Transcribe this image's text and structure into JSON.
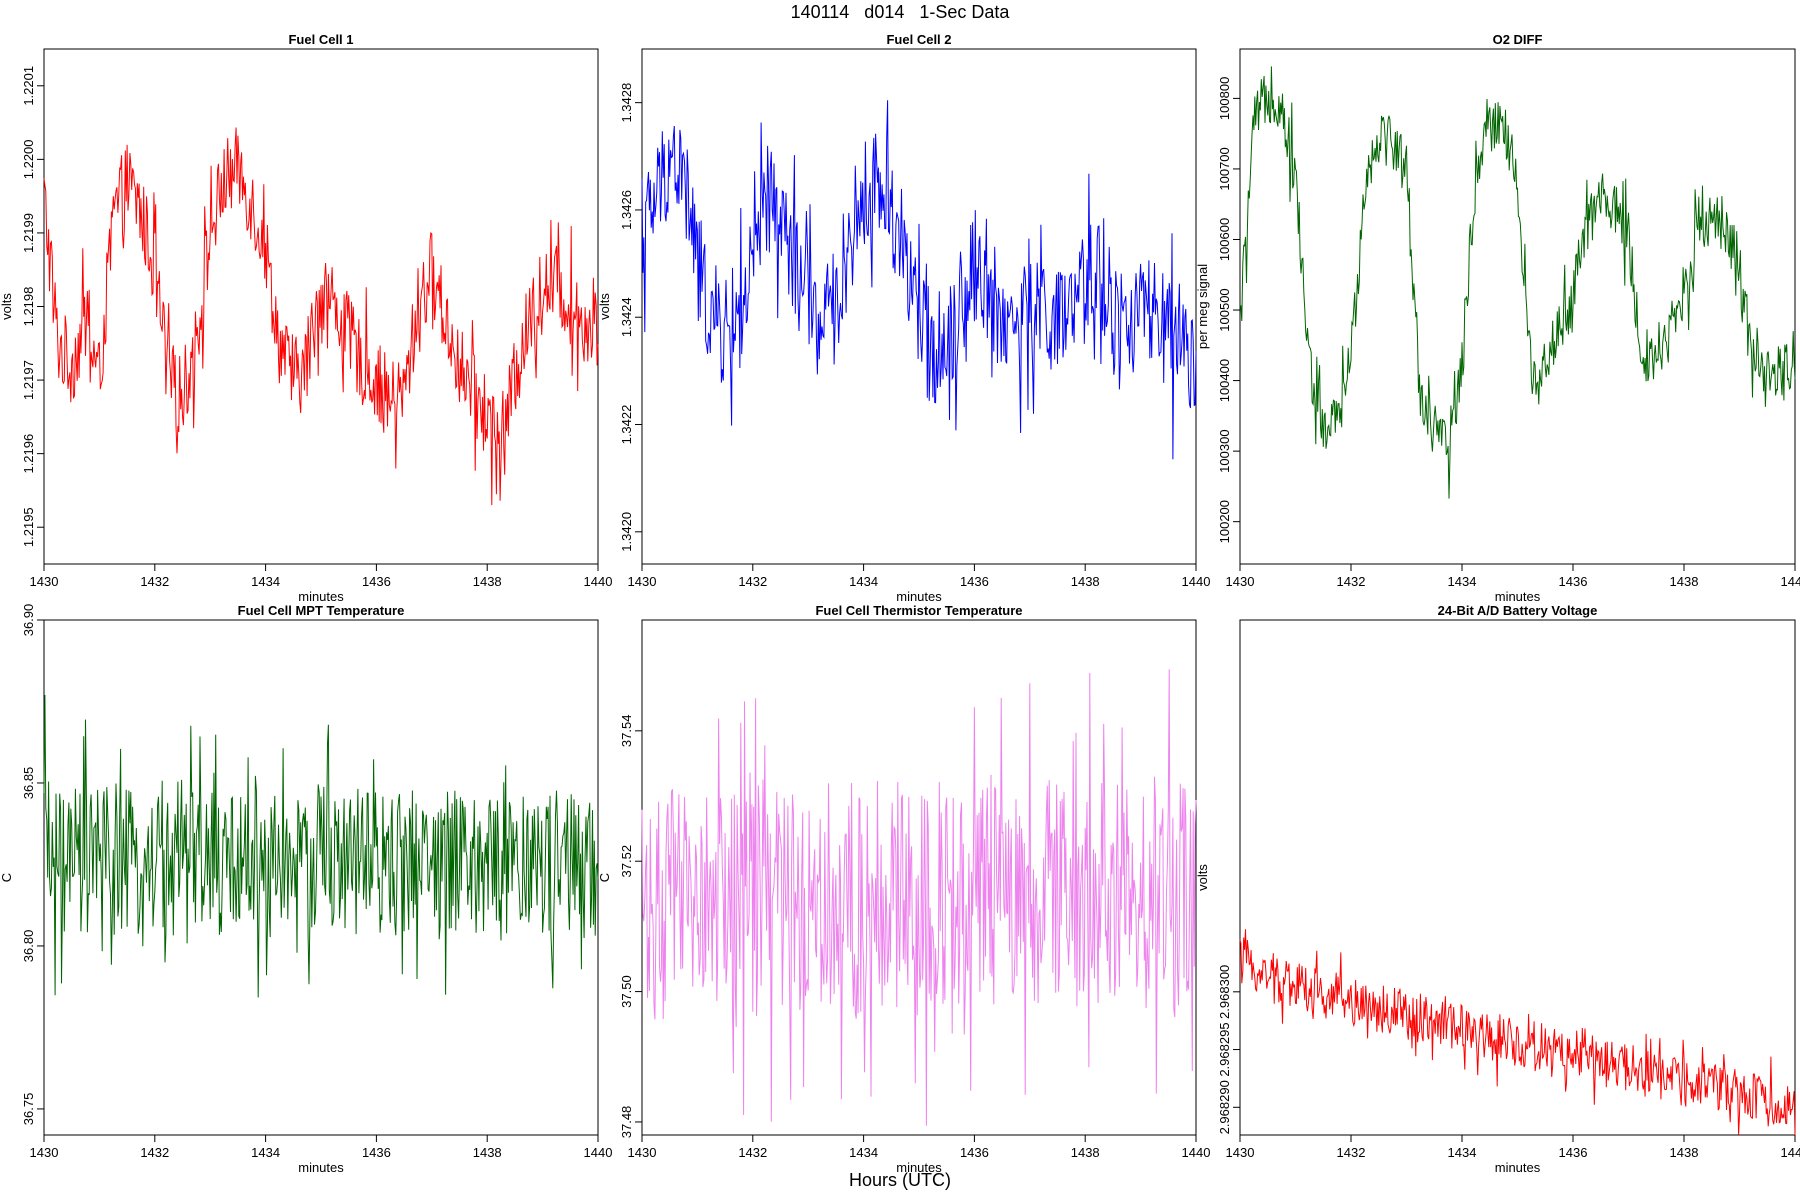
{
  "title": "140114   d014   1-Sec Data",
  "bottom_label": "Hours (UTC)",
  "chart_data": [
    {
      "type": "line",
      "title": "Fuel Cell 1",
      "xlabel": "minutes",
      "ylabel": "volts",
      "color": "#ff0000",
      "xlim": [
        1430,
        1440
      ],
      "ylim": [
        1.21945,
        1.22015
      ],
      "xticks": [
        "1430",
        "1432",
        "1434",
        "1436",
        "1438",
        "1440"
      ],
      "yticks": [
        "1.2195",
        "1.2196",
        "1.2197",
        "1.2198",
        "1.2199",
        "1.2200",
        "1.2201"
      ],
      "series": [
        {
          "x": [
            1430.0,
            1430.25,
            1430.5,
            1430.75,
            1431.0,
            1431.25,
            1431.5,
            1431.75,
            1432.0,
            1432.25,
            1432.5,
            1432.75,
            1433.0,
            1433.25,
            1433.5,
            1433.75,
            1434.0,
            1434.25,
            1434.5,
            1434.75,
            1435.0,
            1435.25,
            1435.5,
            1435.75,
            1436.0,
            1436.25,
            1436.5,
            1436.75,
            1437.0,
            1437.25,
            1437.5,
            1437.75,
            1438.0,
            1438.25,
            1438.5,
            1438.75,
            1439.0,
            1439.25,
            1439.5,
            1439.75,
            1440.0
          ],
          "y": [
            1.21995,
            1.21975,
            1.21972,
            1.21978,
            1.2197,
            1.21992,
            1.21997,
            1.21993,
            1.21985,
            1.2197,
            1.21968,
            1.21975,
            1.2199,
            1.21997,
            1.21999,
            1.21994,
            1.21988,
            1.21975,
            1.2197,
            1.21972,
            1.21983,
            1.2198,
            1.21976,
            1.21972,
            1.2197,
            1.21967,
            1.21968,
            1.2198,
            1.21985,
            1.21978,
            1.21972,
            1.21968,
            1.21965,
            1.21962,
            1.2197,
            1.21978,
            1.21982,
            1.21983,
            1.2198,
            1.21978,
            1.21977
          ]
        }
      ]
    },
    {
      "type": "line",
      "title": "Fuel Cell 2",
      "xlabel": "minutes",
      "ylabel": "volts",
      "color": "#0000ff",
      "xlim": [
        1430,
        1440
      ],
      "ylim": [
        1.34194,
        1.3429
      ],
      "xticks": [
        "1430",
        "1432",
        "1434",
        "1436",
        "1438",
        "1440"
      ],
      "yticks": [
        "1.3420",
        "1.3422",
        "1.3424",
        "1.3426",
        "1.3428"
      ],
      "series": [
        {
          "x": [
            1430.0,
            1430.25,
            1430.5,
            1430.75,
            1431.0,
            1431.25,
            1431.5,
            1431.75,
            1432.0,
            1432.25,
            1432.5,
            1432.75,
            1433.0,
            1433.25,
            1433.5,
            1433.75,
            1434.0,
            1434.25,
            1434.5,
            1434.75,
            1435.0,
            1435.25,
            1435.5,
            1435.75,
            1436.0,
            1436.25,
            1436.5,
            1436.75,
            1437.0,
            1437.25,
            1437.5,
            1437.75,
            1438.0,
            1438.25,
            1438.5,
            1438.75,
            1439.0,
            1439.25,
            1439.5,
            1439.75,
            1440.0
          ],
          "y": [
            1.34255,
            1.34262,
            1.3427,
            1.34266,
            1.3425,
            1.3424,
            1.34237,
            1.3424,
            1.34248,
            1.34262,
            1.34258,
            1.3425,
            1.34243,
            1.34238,
            1.34242,
            1.34255,
            1.34262,
            1.34265,
            1.3426,
            1.34252,
            1.34238,
            1.34234,
            1.34236,
            1.34242,
            1.3425,
            1.34245,
            1.3424,
            1.34238,
            1.3424,
            1.34242,
            1.34238,
            1.3424,
            1.34245,
            1.3425,
            1.3424,
            1.34238,
            1.34242,
            1.3424,
            1.34236,
            1.34232,
            1.3423
          ]
        }
      ]
    },
    {
      "type": "line",
      "title": "O2 DIFF",
      "xlabel": "minutes",
      "ylabel": "per meg signal",
      "color": "#006400",
      "xlim": [
        1430,
        1440
      ],
      "ylim": [
        100140,
        100870
      ],
      "xticks": [
        "1430",
        "1432",
        "1434",
        "1436",
        "1438",
        "1440"
      ],
      "yticks": [
        "100200",
        "100300",
        "100400",
        "100500",
        "100600",
        "100700",
        "100800"
      ],
      "series": [
        {
          "x": [
            1430.0,
            1430.25,
            1430.5,
            1430.75,
            1431.0,
            1431.25,
            1431.5,
            1431.75,
            1432.0,
            1432.25,
            1432.5,
            1432.75,
            1433.0,
            1433.25,
            1433.5,
            1433.75,
            1434.0,
            1434.25,
            1434.5,
            1434.75,
            1435.0,
            1435.25,
            1435.5,
            1435.75,
            1436.0,
            1436.25,
            1436.5,
            1436.75,
            1437.0,
            1437.25,
            1437.5,
            1437.75,
            1438.0,
            1438.25,
            1438.5,
            1438.75,
            1439.0,
            1439.25,
            1439.5,
            1439.75,
            1440.0
          ],
          "y": [
            100480,
            100760,
            100810,
            100790,
            100690,
            100420,
            100330,
            100340,
            100430,
            100680,
            100750,
            100740,
            100700,
            100380,
            100330,
            100300,
            100420,
            100700,
            100780,
            100760,
            100680,
            100400,
            100430,
            100470,
            100520,
            100620,
            100660,
            100640,
            100600,
            100430,
            100440,
            100470,
            100520,
            100620,
            100640,
            100620,
            100560,
            100420,
            100400,
            100410,
            100440
          ]
        }
      ]
    },
    {
      "type": "line",
      "title": "Fuel Cell MPT Temperature",
      "xlabel": "minutes",
      "ylabel": "C",
      "color": "#006400",
      "xlim": [
        1430,
        1440
      ],
      "ylim": [
        36.742,
        36.9
      ],
      "xticks": [
        "1430",
        "1432",
        "1434",
        "1436",
        "1438",
        "1440"
      ],
      "yticks": [
        "36.75",
        "36.80",
        "36.85",
        "36.90"
      ],
      "series": [
        {
          "x": [
            1430.0,
            1430.25,
            1430.5,
            1430.75,
            1431.0,
            1431.25,
            1431.5,
            1431.75,
            1432.0,
            1432.25,
            1432.5,
            1432.75,
            1433.0,
            1433.25,
            1433.5,
            1433.75,
            1434.0,
            1434.25,
            1434.5,
            1434.75,
            1435.0,
            1435.25,
            1435.5,
            1435.75,
            1436.0,
            1436.25,
            1436.5,
            1436.75,
            1437.0,
            1437.25,
            1437.5,
            1437.75,
            1438.0,
            1438.25,
            1438.5,
            1438.75,
            1439.0,
            1439.25,
            1439.5,
            1439.75,
            1440.0
          ],
          "y": [
            36.832,
            36.825,
            36.822,
            36.826,
            36.828,
            36.824,
            36.826,
            36.823,
            36.827,
            36.825,
            36.829,
            36.824,
            36.826,
            36.822,
            36.828,
            36.826,
            36.824,
            36.827,
            36.823,
            36.825,
            36.829,
            36.826,
            36.824,
            36.828,
            36.825,
            36.823,
            36.827,
            36.826,
            36.824,
            36.828,
            36.825,
            36.823,
            36.826,
            36.824,
            36.827,
            36.825,
            36.823,
            36.826,
            36.824,
            36.822,
            36.825
          ]
        }
      ]
    },
    {
      "type": "line",
      "title": "Fuel Cell Thermistor Temperature",
      "xlabel": "minutes",
      "ylabel": "C",
      "color": "#ee82ee",
      "xlim": [
        1430,
        1440
      ],
      "ylim": [
        37.478,
        37.557
      ],
      "xticks": [
        "1430",
        "1432",
        "1434",
        "1436",
        "1438",
        "1440"
      ],
      "yticks": [
        "37.48",
        "37.50",
        "37.52",
        "37.54"
      ],
      "series": [
        {
          "x": [
            1430.0,
            1430.25,
            1430.5,
            1430.75,
            1431.0,
            1431.25,
            1431.5,
            1431.75,
            1432.0,
            1432.25,
            1432.5,
            1432.75,
            1433.0,
            1433.25,
            1433.5,
            1433.75,
            1434.0,
            1434.25,
            1434.5,
            1434.75,
            1435.0,
            1435.25,
            1435.5,
            1435.75,
            1436.0,
            1436.25,
            1436.5,
            1436.75,
            1437.0,
            1437.25,
            1437.5,
            1437.75,
            1438.0,
            1438.25,
            1438.5,
            1438.75,
            1439.0,
            1439.25,
            1439.5,
            1439.75,
            1440.0
          ],
          "y": [
            37.515,
            37.512,
            37.514,
            37.513,
            37.516,
            37.512,
            37.515,
            37.514,
            37.513,
            37.516,
            37.514,
            37.515,
            37.513,
            37.516,
            37.514,
            37.515,
            37.512,
            37.516,
            37.514,
            37.515,
            37.513,
            37.516,
            37.514,
            37.515,
            37.513,
            37.516,
            37.514,
            37.515,
            37.512,
            37.516,
            37.514,
            37.515,
            37.513,
            37.516,
            37.514,
            37.515,
            37.513,
            37.516,
            37.514,
            37.516,
            37.52
          ]
        }
      ]
    },
    {
      "type": "line",
      "title": "24-Bit A/D Battery Voltage",
      "xlabel": "minutes",
      "ylabel": "volts",
      "color": "#ff0000",
      "xlim": [
        1430,
        1440
      ],
      "ylim": [
        2.9682876,
        2.9683322
      ],
      "xticks": [
        "1430",
        "1432",
        "1434",
        "1436",
        "1438",
        "1440"
      ],
      "yticks": [
        "2.968290",
        "2.968295",
        "2.968300"
      ],
      "series": [
        {
          "x": [
            1430.0,
            1430.25,
            1430.5,
            1430.75,
            1431.0,
            1431.25,
            1431.5,
            1431.75,
            1432.0,
            1432.25,
            1432.5,
            1432.75,
            1433.0,
            1433.25,
            1433.5,
            1433.75,
            1434.0,
            1434.25,
            1434.5,
            1434.75,
            1435.0,
            1435.25,
            1435.5,
            1435.75,
            1436.0,
            1436.25,
            1436.5,
            1436.75,
            1437.0,
            1437.25,
            1437.5,
            1437.75,
            1438.0,
            1438.25,
            1438.5,
            1438.75,
            1439.0,
            1439.25,
            1439.5,
            1439.75,
            1440.0
          ],
          "y": [
            2.9683028,
            2.9683021,
            2.9683015,
            2.968301,
            2.9683006,
            2.9683002,
            2.9682999,
            2.9682995,
            2.9682992,
            2.9682989,
            2.9682986,
            2.9682983,
            2.968298,
            2.9682977,
            2.9682974,
            2.9682971,
            2.9682968,
            2.9682965,
            2.9682962,
            2.9682959,
            2.9682957,
            2.9682954,
            2.9682951,
            2.9682948,
            2.9682945,
            2.9682942,
            2.9682939,
            2.9682937,
            2.9682934,
            2.9682931,
            2.9682928,
            2.9682925,
            2.9682922,
            2.9682919,
            2.9682917,
            2.9682914,
            2.9682911,
            2.9682908,
            2.9682905,
            2.9682902,
            2.96829
          ]
        }
      ]
    }
  ]
}
